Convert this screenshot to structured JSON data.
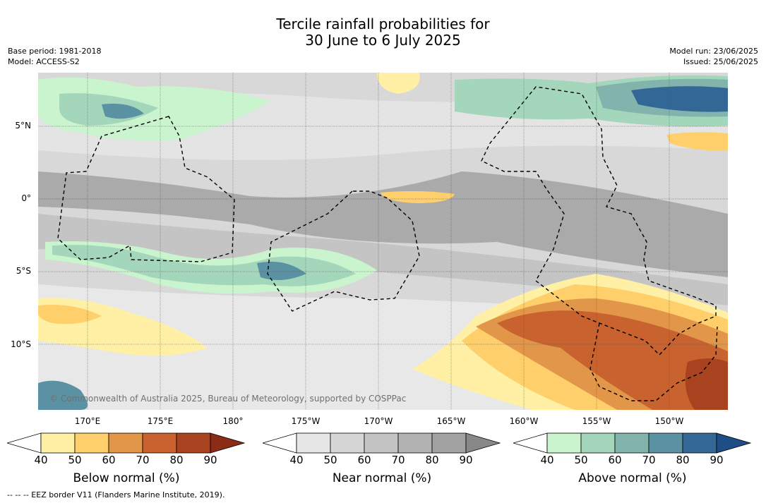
{
  "title_line1": "Tercile rainfall probabilities for",
  "title_line2": "30 June to 6 July 2025",
  "meta": {
    "base_period": "Base period: 1981-2018",
    "model": "Model: ACCESS-S2",
    "model_run": "Model run: 23/06/2025",
    "issued": "Issued: 25/06/2025"
  },
  "lat_labels": [
    "5°N",
    "0°",
    "5°S",
    "10°S"
  ],
  "lon_labels": [
    "170°E",
    "175°E",
    "180°",
    "175°W",
    "170°W",
    "165°W",
    "160°W",
    "155°W",
    "150°W"
  ],
  "copyright": "© Commonwealth of Australia 2025, Bureau of Meteorology, supported by COSPPac",
  "eez_note": "--  --  -- EEZ border V11 (Flanders Marine Institute, 2019).",
  "colorbars": [
    {
      "title": "Below normal (%)",
      "ticks": [
        "40",
        "50",
        "60",
        "70",
        "80",
        "90"
      ],
      "colors": [
        "#ffffff",
        "#fff0a6",
        "#fecf6a",
        "#e2964a",
        "#c8622f",
        "#a8421f",
        "#8b2c17"
      ]
    },
    {
      "title": "Near normal (%)",
      "ticks": [
        "40",
        "50",
        "60",
        "70",
        "80",
        "90"
      ],
      "colors": [
        "#ffffff",
        "#e6e6e6",
        "#d6d6d6",
        "#c4c4c4",
        "#b2b2b2",
        "#a2a2a2",
        "#888888"
      ]
    },
    {
      "title": "Above normal (%)",
      "ticks": [
        "40",
        "50",
        "60",
        "70",
        "80",
        "90"
      ],
      "colors": [
        "#ffffff",
        "#c9f4cd",
        "#a3d6bb",
        "#82b4ad",
        "#5b92a3",
        "#336896",
        "#1f4d86"
      ]
    }
  ]
}
